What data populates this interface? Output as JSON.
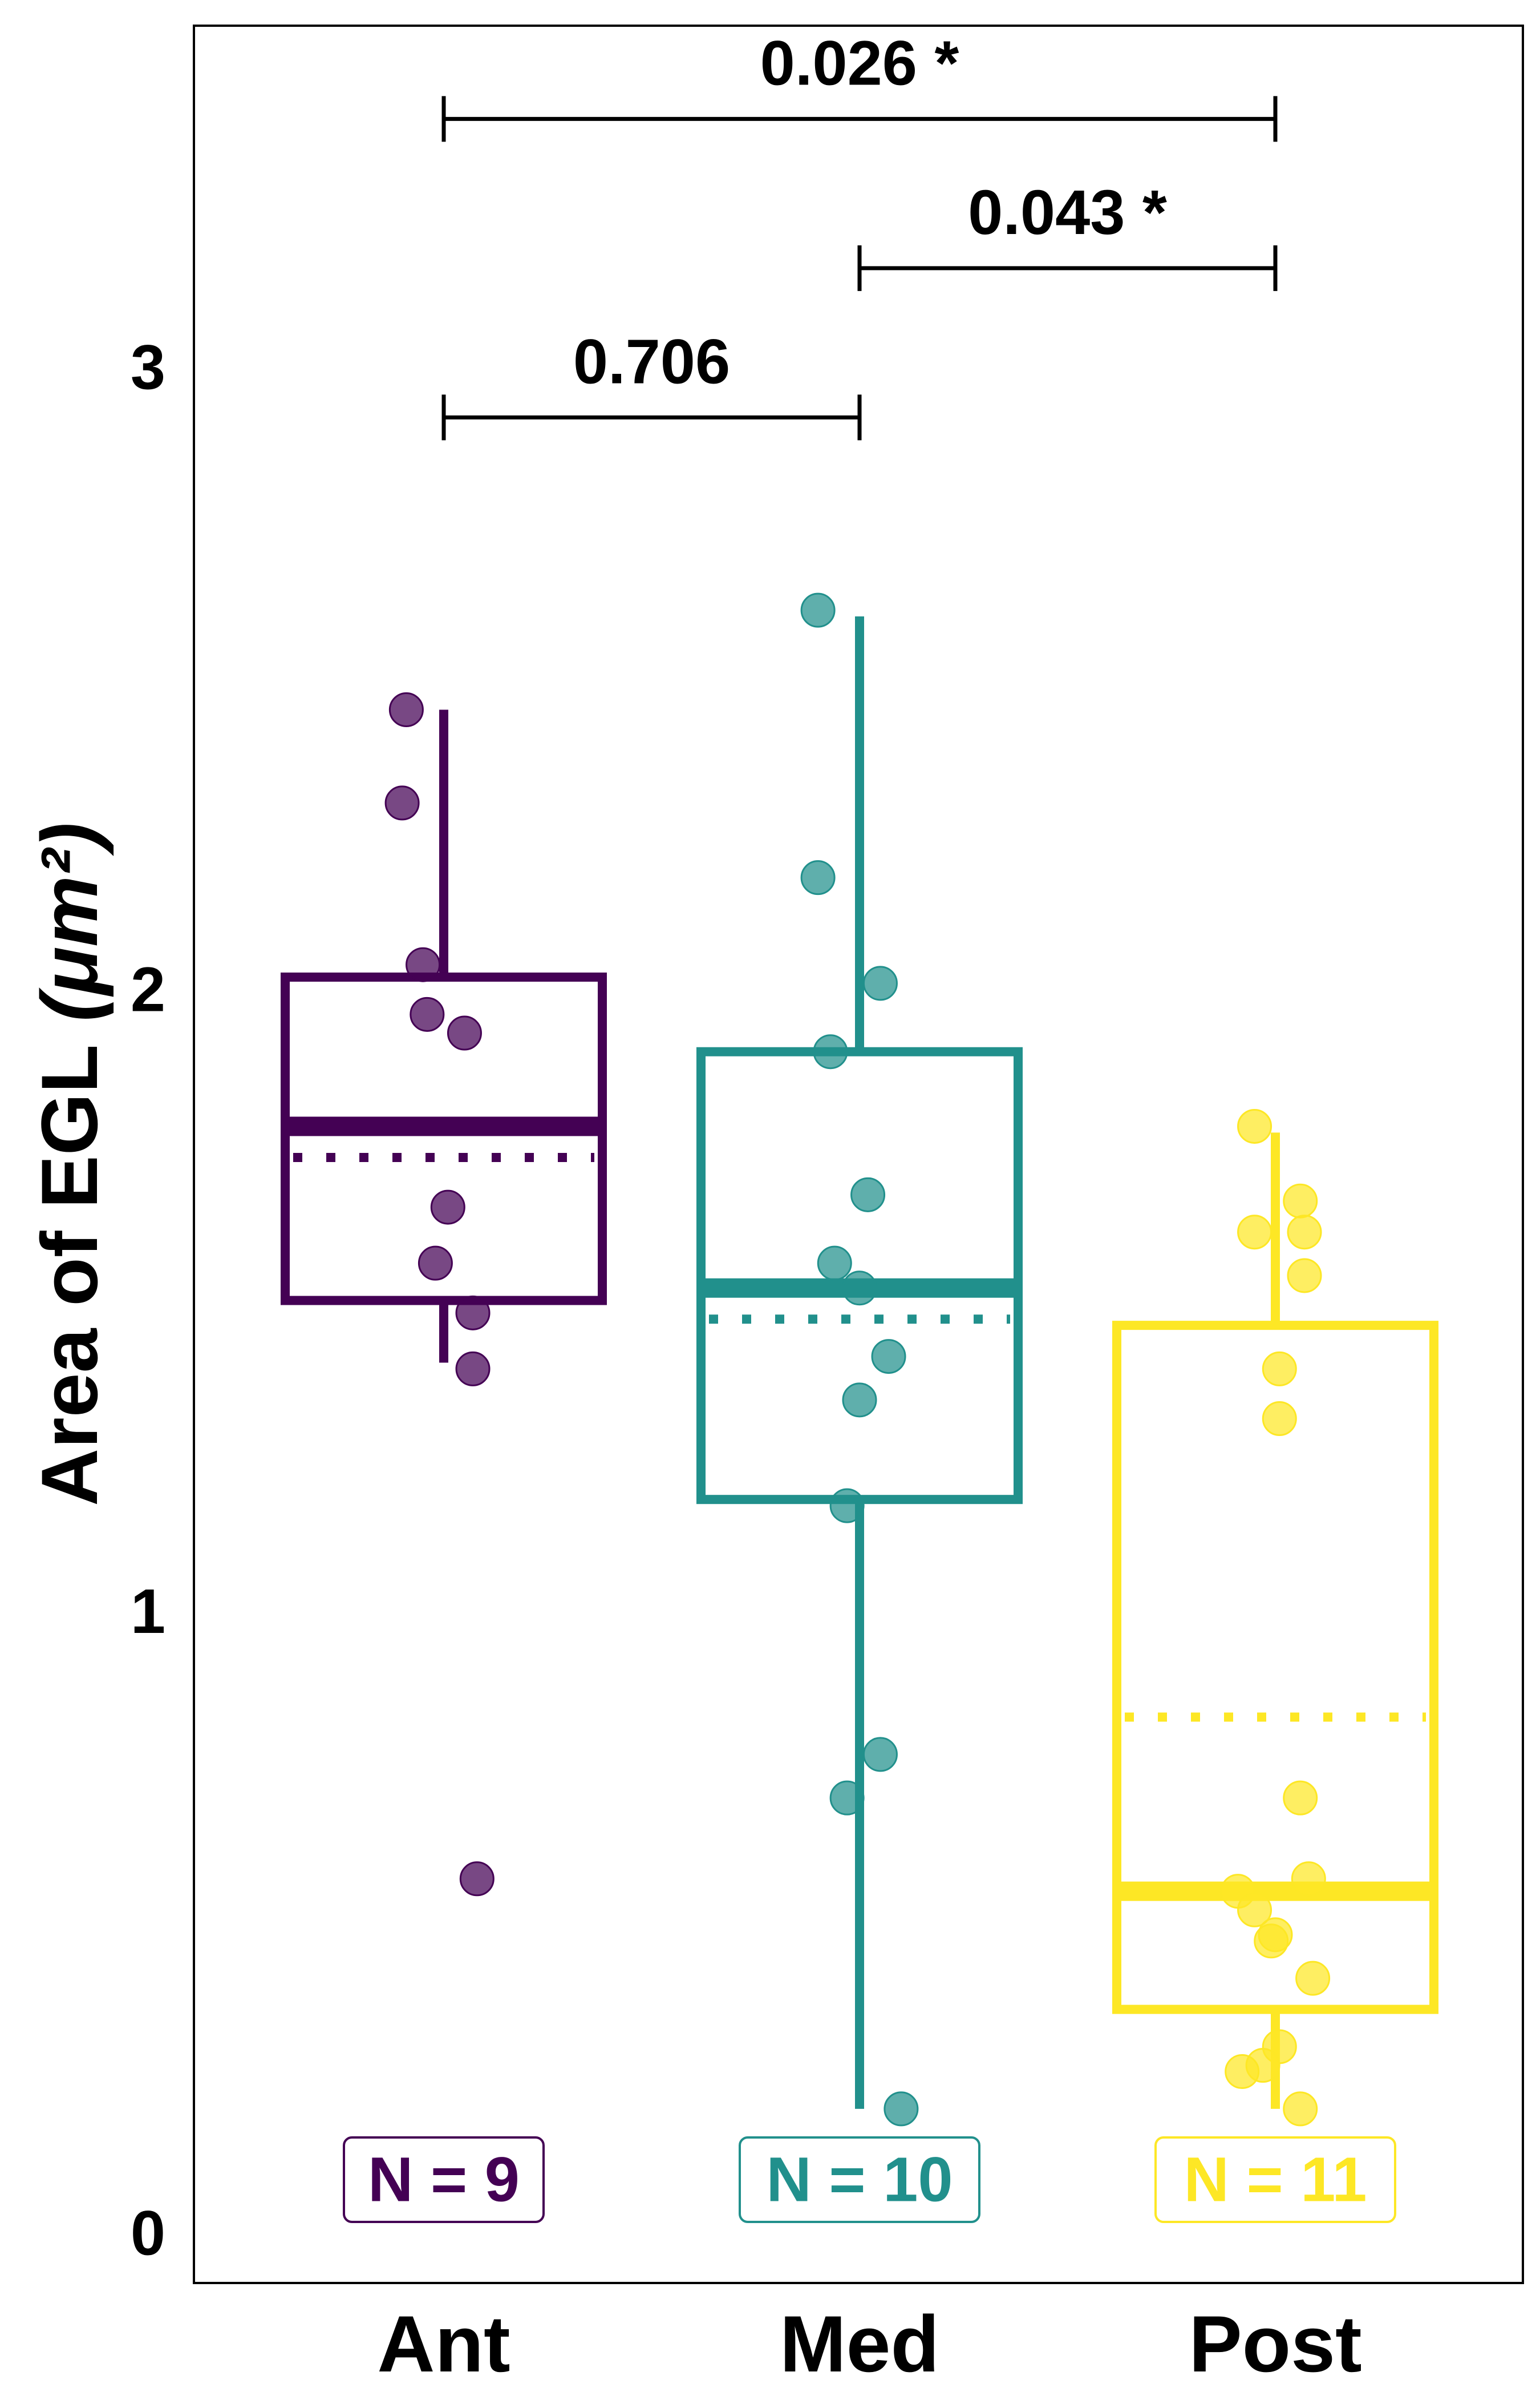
{
  "chart_data": {
    "type": "box",
    "title": "",
    "xlabel": "",
    "ylabel": "Area of EGL",
    "ylabel_unit": "(μm²)",
    "ylim": [
      -0.08,
      3.55
    ],
    "yticks": [
      0,
      1,
      2,
      3
    ],
    "grid": false,
    "categories": [
      "Ant",
      "Med",
      "Post"
    ],
    "series": [
      {
        "name": "Ant",
        "color": "#440154",
        "n_label": "N = 9",
        "whisker_low": 1.4,
        "q1": 1.5,
        "median": 1.78,
        "mean": 1.73,
        "q3": 2.02,
        "whisker_high": 2.45,
        "points": [
          {
            "dx": -0.09,
            "y": 2.45
          },
          {
            "dx": -0.1,
            "y": 2.3
          },
          {
            "dx": -0.05,
            "y": 2.04
          },
          {
            "dx": -0.04,
            "y": 1.96
          },
          {
            "dx": 0.05,
            "y": 1.93
          },
          {
            "dx": 0.01,
            "y": 1.65
          },
          {
            "dx": -0.02,
            "y": 1.56
          },
          {
            "dx": 0.07,
            "y": 1.48
          },
          {
            "dx": 0.07,
            "y": 1.39
          },
          {
            "dx": 0.08,
            "y": 0.57
          }
        ]
      },
      {
        "name": "Med",
        "color": "#21908C",
        "n_label": "N = 10",
        "whisker_low": 0.2,
        "q1": 1.18,
        "median": 1.52,
        "mean": 1.47,
        "q3": 1.9,
        "whisker_high": 2.6,
        "points": [
          {
            "dx": -0.1,
            "y": 2.61
          },
          {
            "dx": -0.1,
            "y": 2.18
          },
          {
            "dx": 0.05,
            "y": 2.01
          },
          {
            "dx": -0.07,
            "y": 1.9
          },
          {
            "dx": 0.02,
            "y": 1.67
          },
          {
            "dx": -0.06,
            "y": 1.56
          },
          {
            "dx": 0.0,
            "y": 1.52
          },
          {
            "dx": 0.07,
            "y": 1.41
          },
          {
            "dx": 0.0,
            "y": 1.34
          },
          {
            "dx": -0.03,
            "y": 1.17
          },
          {
            "dx": 0.05,
            "y": 0.77
          },
          {
            "dx": -0.03,
            "y": 0.7
          },
          {
            "dx": 0.1,
            "y": 0.2
          }
        ]
      },
      {
        "name": "Post",
        "color": "#FDE725",
        "n_label": "N = 11",
        "whisker_low": 0.2,
        "q1": 0.36,
        "median": 0.55,
        "mean": 0.83,
        "q3": 1.46,
        "whisker_high": 1.77,
        "points": [
          {
            "dx": -0.05,
            "y": 1.78
          },
          {
            "dx": 0.06,
            "y": 1.66
          },
          {
            "dx": -0.05,
            "y": 1.61
          },
          {
            "dx": 0.07,
            "y": 1.61
          },
          {
            "dx": 0.07,
            "y": 1.54
          },
          {
            "dx": 0.01,
            "y": 1.39
          },
          {
            "dx": 0.01,
            "y": 1.31
          },
          {
            "dx": 0.06,
            "y": 0.7
          },
          {
            "dx": 0.08,
            "y": 0.57
          },
          {
            "dx": -0.09,
            "y": 0.55
          },
          {
            "dx": -0.05,
            "y": 0.52
          },
          {
            "dx": 0.0,
            "y": 0.48
          },
          {
            "dx": -0.01,
            "y": 0.47
          },
          {
            "dx": 0.09,
            "y": 0.41
          },
          {
            "dx": 0.01,
            "y": 0.3
          },
          {
            "dx": -0.03,
            "y": 0.27
          },
          {
            "dx": -0.08,
            "y": 0.26
          },
          {
            "dx": 0.06,
            "y": 0.2
          }
        ]
      }
    ],
    "comparisons": [
      {
        "from": 0,
        "to": 2,
        "y": 3.4,
        "label": "0.026 *"
      },
      {
        "from": 1,
        "to": 2,
        "y": 3.16,
        "label": "0.043 *"
      },
      {
        "from": 0,
        "to": 1,
        "y": 2.92,
        "label": "0.706"
      }
    ]
  }
}
